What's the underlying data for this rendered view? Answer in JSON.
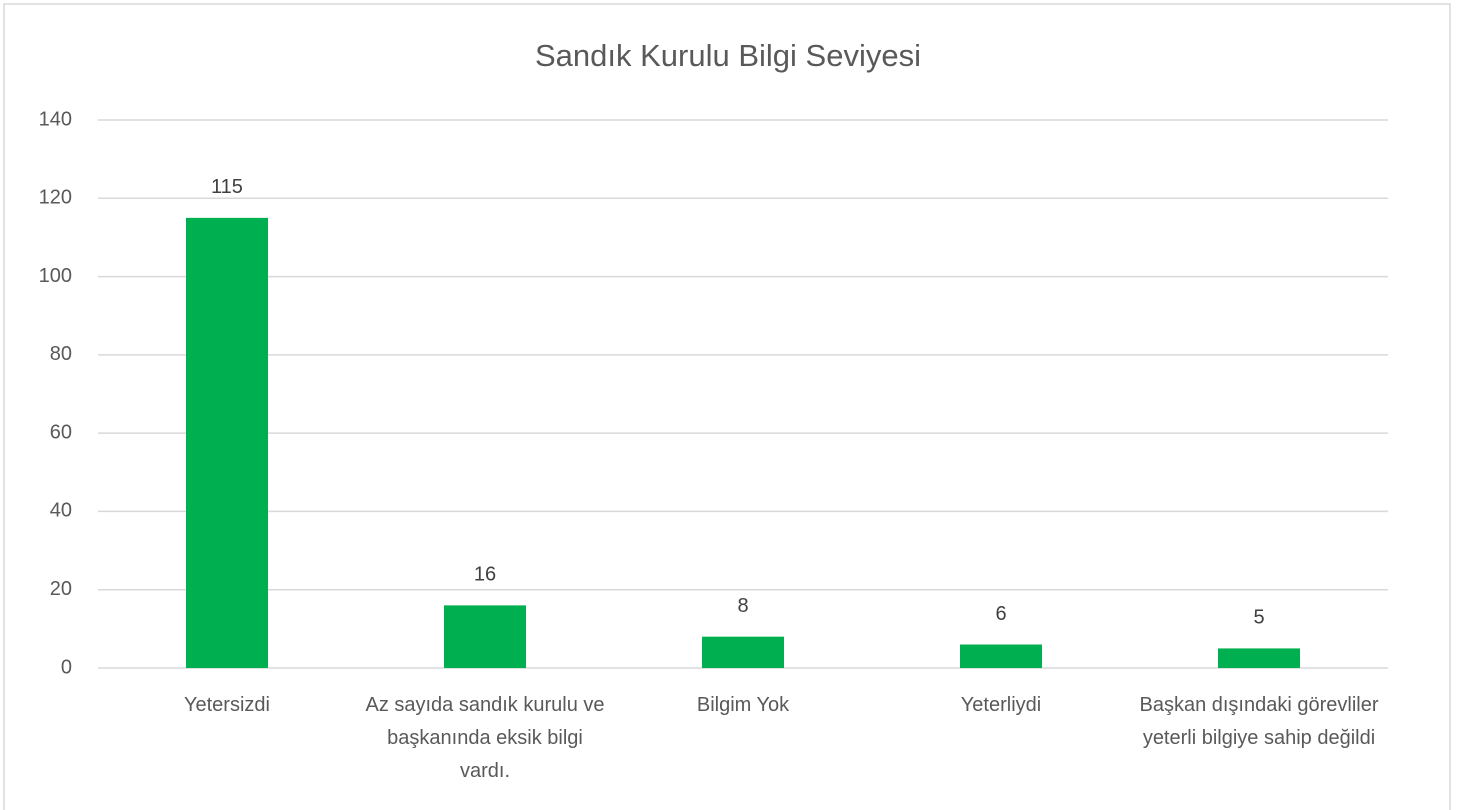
{
  "chart_data": {
    "type": "bar",
    "title": "Sandık Kurulu Bilgi Seviyesi",
    "categories": [
      "Yetersizdi",
      "Az sayıda sandık kurulu ve başkanında eksik bilgi vardı.",
      "Bilgim Yok",
      "Yeterliydi",
      "Başkan dışındaki görevliler yeterli bilgiye sahip değildi"
    ],
    "values": [
      115,
      16,
      8,
      6,
      5
    ],
    "color": "#00b050",
    "ylim": [
      0,
      140
    ],
    "yticks": [
      0,
      20,
      40,
      60,
      80,
      100,
      120,
      140
    ],
    "grid": true
  }
}
